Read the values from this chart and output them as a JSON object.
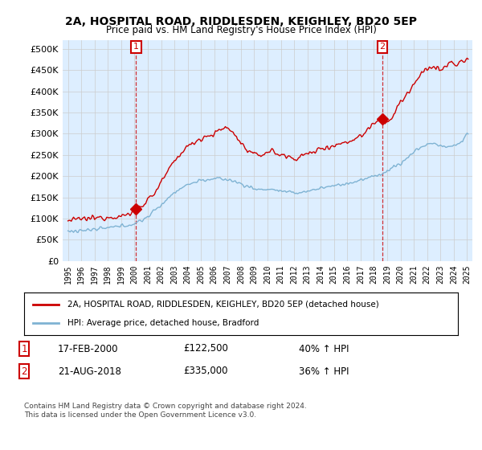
{
  "title": "2A, HOSPITAL ROAD, RIDDLESDEN, KEIGHLEY, BD20 5EP",
  "subtitle": "Price paid vs. HM Land Registry's House Price Index (HPI)",
  "legend_line1": "2A, HOSPITAL ROAD, RIDDLESDEN, KEIGHLEY, BD20 5EP (detached house)",
  "legend_line2": "HPI: Average price, detached house, Bradford",
  "footnote": "Contains HM Land Registry data © Crown copyright and database right 2024.\nThis data is licensed under the Open Government Licence v3.0.",
  "purchase1_label": "1",
  "purchase1_date": "17-FEB-2000",
  "purchase1_price": "£122,500",
  "purchase1_hpi": "40% ↑ HPI",
  "purchase1_year": 2000.12,
  "purchase1_value": 122500,
  "purchase2_label": "2",
  "purchase2_date": "21-AUG-2018",
  "purchase2_price": "£335,000",
  "purchase2_hpi": "36% ↑ HPI",
  "purchase2_year": 2018.64,
  "purchase2_value": 335000,
  "hpi_color": "#7fb3d3",
  "price_color": "#cc0000",
  "marker_color": "#cc0000",
  "grid_color": "#cccccc",
  "chart_bg": "#ddeeff",
  "ylim": [
    0,
    520000
  ],
  "yticks": [
    0,
    50000,
    100000,
    150000,
    200000,
    250000,
    300000,
    350000,
    400000,
    450000,
    500000
  ],
  "xlim_start": 1994.6,
  "xlim_end": 2025.4,
  "background": "#ffffff",
  "red_waypoints": [
    [
      1995.0,
      95000
    ],
    [
      1995.5,
      97000
    ],
    [
      1996.0,
      99000
    ],
    [
      1996.5,
      100000
    ],
    [
      1997.0,
      101000
    ],
    [
      1997.5,
      103000
    ],
    [
      1998.0,
      104000
    ],
    [
      1998.5,
      105000
    ],
    [
      1999.0,
      106000
    ],
    [
      1999.5,
      108000
    ],
    [
      2000.12,
      122500
    ],
    [
      2000.5,
      130000
    ],
    [
      2001.0,
      145000
    ],
    [
      2001.5,
      160000
    ],
    [
      2002.0,
      185000
    ],
    [
      2002.5,
      210000
    ],
    [
      2003.0,
      235000
    ],
    [
      2003.5,
      255000
    ],
    [
      2004.0,
      270000
    ],
    [
      2004.5,
      280000
    ],
    [
      2005.0,
      290000
    ],
    [
      2005.5,
      295000
    ],
    [
      2006.0,
      300000
    ],
    [
      2006.5,
      310000
    ],
    [
      2007.0,
      315000
    ],
    [
      2007.3,
      305000
    ],
    [
      2007.6,
      295000
    ],
    [
      2007.9,
      285000
    ],
    [
      2008.2,
      270000
    ],
    [
      2008.5,
      260000
    ],
    [
      2008.8,
      255000
    ],
    [
      2009.0,
      250000
    ],
    [
      2009.3,
      248000
    ],
    [
      2009.6,
      252000
    ],
    [
      2010.0,
      258000
    ],
    [
      2010.3,
      260000
    ],
    [
      2010.6,
      255000
    ],
    [
      2011.0,
      250000
    ],
    [
      2011.3,
      248000
    ],
    [
      2011.6,
      245000
    ],
    [
      2012.0,
      242000
    ],
    [
      2012.3,
      245000
    ],
    [
      2012.6,
      248000
    ],
    [
      2013.0,
      252000
    ],
    [
      2013.3,
      255000
    ],
    [
      2013.6,
      260000
    ],
    [
      2014.0,
      265000
    ],
    [
      2014.3,
      268000
    ],
    [
      2014.6,
      270000
    ],
    [
      2015.0,
      272000
    ],
    [
      2015.3,
      275000
    ],
    [
      2015.6,
      278000
    ],
    [
      2016.0,
      280000
    ],
    [
      2016.3,
      285000
    ],
    [
      2016.6,
      290000
    ],
    [
      2017.0,
      295000
    ],
    [
      2017.3,
      300000
    ],
    [
      2017.6,
      315000
    ],
    [
      2017.9,
      325000
    ],
    [
      2018.3,
      332000
    ],
    [
      2018.64,
      335000
    ],
    [
      2018.9,
      330000
    ],
    [
      2019.0,
      328000
    ],
    [
      2019.3,
      335000
    ],
    [
      2019.6,
      350000
    ],
    [
      2019.9,
      370000
    ],
    [
      2020.3,
      385000
    ],
    [
      2020.6,
      400000
    ],
    [
      2021.0,
      415000
    ],
    [
      2021.3,
      430000
    ],
    [
      2021.6,
      440000
    ],
    [
      2021.9,
      450000
    ],
    [
      2022.2,
      455000
    ],
    [
      2022.5,
      460000
    ],
    [
      2022.8,
      455000
    ],
    [
      2023.0,
      450000
    ],
    [
      2023.3,
      455000
    ],
    [
      2023.6,
      465000
    ],
    [
      2023.9,
      468000
    ],
    [
      2024.2,
      462000
    ],
    [
      2024.5,
      468000
    ],
    [
      2024.8,
      472000
    ],
    [
      2025.0,
      475000
    ]
  ],
  "blue_waypoints": [
    [
      1995.0,
      70000
    ],
    [
      1995.5,
      71000
    ],
    [
      1996.0,
      72000
    ],
    [
      1996.5,
      73000
    ],
    [
      1997.0,
      74000
    ],
    [
      1997.5,
      76000
    ],
    [
      1998.0,
      78000
    ],
    [
      1998.5,
      80000
    ],
    [
      1999.0,
      82000
    ],
    [
      1999.5,
      85000
    ],
    [
      2000.0,
      88000
    ],
    [
      2000.5,
      95000
    ],
    [
      2001.0,
      105000
    ],
    [
      2001.5,
      118000
    ],
    [
      2002.0,
      132000
    ],
    [
      2002.5,
      148000
    ],
    [
      2003.0,
      162000
    ],
    [
      2003.5,
      172000
    ],
    [
      2004.0,
      180000
    ],
    [
      2004.5,
      186000
    ],
    [
      2005.0,
      190000
    ],
    [
      2005.5,
      192000
    ],
    [
      2006.0,
      193000
    ],
    [
      2006.5,
      194000
    ],
    [
      2007.0,
      192000
    ],
    [
      2007.5,
      188000
    ],
    [
      2008.0,
      182000
    ],
    [
      2008.5,
      176000
    ],
    [
      2009.0,
      170000
    ],
    [
      2009.5,
      168000
    ],
    [
      2010.0,
      170000
    ],
    [
      2010.5,
      168000
    ],
    [
      2011.0,
      165000
    ],
    [
      2011.5,
      162000
    ],
    [
      2012.0,
      160000
    ],
    [
      2012.5,
      162000
    ],
    [
      2013.0,
      165000
    ],
    [
      2013.5,
      168000
    ],
    [
      2014.0,
      172000
    ],
    [
      2014.5,
      175000
    ],
    [
      2015.0,
      178000
    ],
    [
      2015.5,
      180000
    ],
    [
      2016.0,
      183000
    ],
    [
      2016.5,
      186000
    ],
    [
      2017.0,
      190000
    ],
    [
      2017.5,
      195000
    ],
    [
      2018.0,
      200000
    ],
    [
      2018.5,
      205000
    ],
    [
      2019.0,
      212000
    ],
    [
      2019.5,
      222000
    ],
    [
      2020.0,
      230000
    ],
    [
      2020.5,
      242000
    ],
    [
      2021.0,
      258000
    ],
    [
      2021.5,
      268000
    ],
    [
      2022.0,
      275000
    ],
    [
      2022.5,
      278000
    ],
    [
      2023.0,
      272000
    ],
    [
      2023.5,
      268000
    ],
    [
      2024.0,
      272000
    ],
    [
      2024.5,
      278000
    ],
    [
      2025.0,
      300000
    ]
  ]
}
